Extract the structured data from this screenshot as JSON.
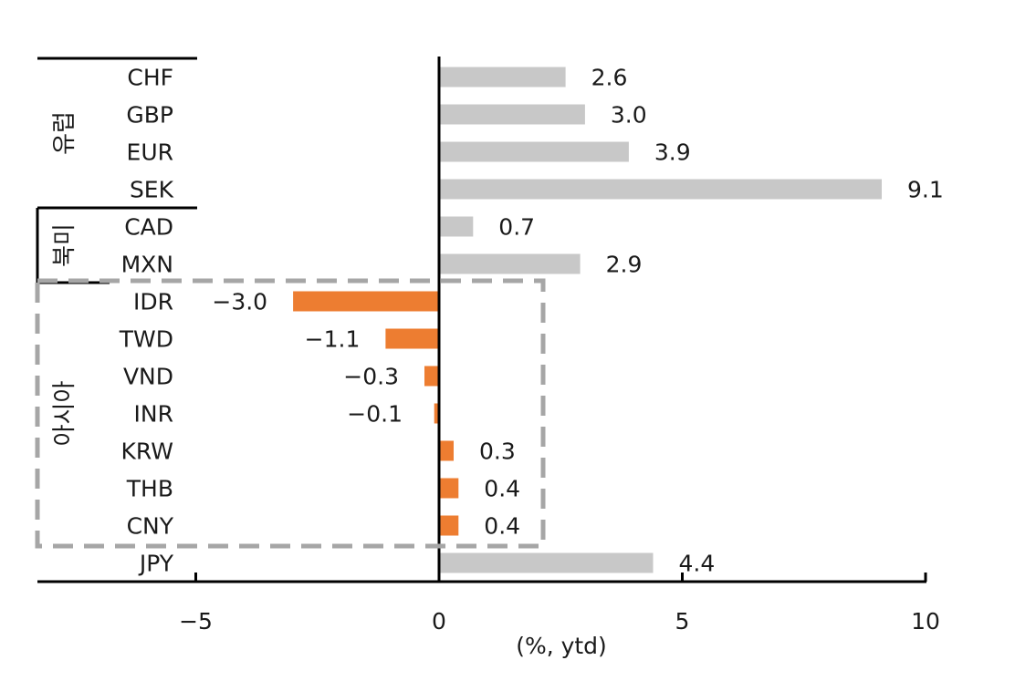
{
  "chart_data": {
    "type": "bar",
    "orientation": "horizontal",
    "categories": [
      "CHF",
      "GBP",
      "EUR",
      "SEK",
      "CAD",
      "MXN",
      "IDR",
      "TWD",
      "VND",
      "INR",
      "KRW",
      "THB",
      "CNY",
      "JPY"
    ],
    "values": [
      2.6,
      3.0,
      3.9,
      9.1,
      0.7,
      2.9,
      -3.0,
      -1.1,
      -0.3,
      -0.1,
      0.3,
      0.4,
      0.4,
      4.4
    ],
    "value_labels": [
      "2.6",
      "3.0",
      "3.9",
      "9.1",
      "0.7",
      "2.9",
      "−3.0",
      "−1.1",
      "−0.3",
      "−0.1",
      "0.3",
      "0.4",
      "0.4",
      "4.4"
    ],
    "groups": [
      {
        "label": "유럽",
        "start": 0,
        "end": 3
      },
      {
        "label": "북미",
        "start": 4,
        "end": 5
      },
      {
        "label": "아시아",
        "start": 6,
        "end": 12,
        "highlighted": true
      }
    ],
    "xlabel": "(%, ytd)",
    "xlim": [
      -5,
      10
    ],
    "xticks": [
      -5,
      0,
      5,
      10
    ],
    "xtick_labels": [
      "−5",
      "0",
      "5",
      "10"
    ],
    "colors": {
      "default_bar": "#c8c8c8",
      "highlight_bar": "#ed7d31",
      "highlight_box": "#a6a6a6",
      "axis": "#000000"
    },
    "grid": false,
    "legend": "none"
  }
}
